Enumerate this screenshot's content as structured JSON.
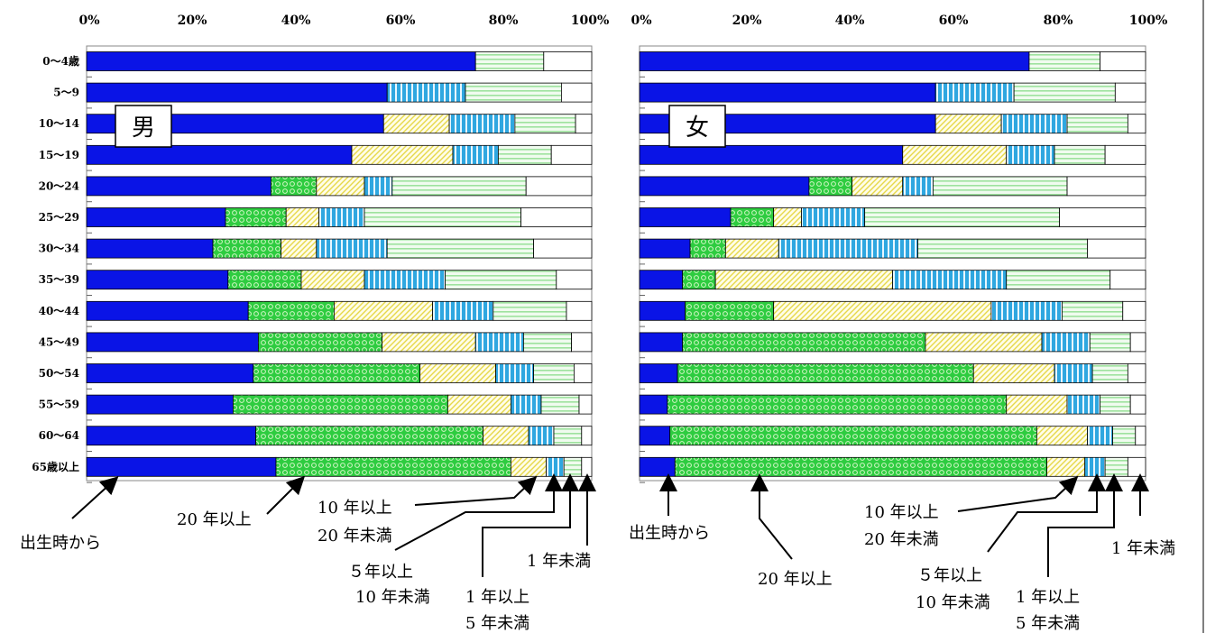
{
  "chart_data": {
    "type": "bar",
    "stacked": true,
    "orientation": "horizontal",
    "xlim": [
      0,
      100
    ],
    "x_ticks": [
      "0%",
      "20%",
      "40%",
      "60%",
      "80%",
      "100%"
    ],
    "categories": [
      "0～4歳",
      "5～9",
      "10～14",
      "15～19",
      "20～24",
      "25～29",
      "30～34",
      "35～39",
      "40～44",
      "45～49",
      "50～54",
      "55～59",
      "60～64",
      "65歳以上"
    ],
    "legend_callouts": {
      "birth": "出生時から",
      "y20plus": "20 年以上",
      "y10_20_line1": "10 年以上",
      "y10_20_line2": "20 年未満",
      "y5_10_line1": "５年以上",
      "y5_10_line2": "10 年未満",
      "y1_5_line1": "1 年以上",
      "y1_5_line2": "5 年未満",
      "under1": "1 年未満"
    },
    "colors": {
      "birth": "#0A14E6",
      "y20plus": "#2ECC40",
      "y10_20": "#E8E060",
      "y5_10": "#2FA7E0",
      "y1_5": "#9EE29E",
      "under1": "#FFFFFF"
    },
    "panels": [
      {
        "label": "男",
        "series": [
          {
            "name": "出生時から",
            "values": [
              77,
              59.5,
              58.8,
              52.5,
              36.5,
              27.5,
              25,
              28,
              32,
              34,
              33,
              29,
              33.5,
              37.5
            ]
          },
          {
            "name": "20 年以上",
            "values": [
              0,
              0,
              0,
              0,
              9,
              12,
              13.5,
              14.5,
              17,
              24.5,
              33,
              42.5,
              45,
              46.5
            ]
          },
          {
            "name": "10 年以上20 年未満",
            "values": [
              0,
              0,
              13,
              20,
              9.5,
              6.5,
              7,
              12.5,
              19.5,
              18.5,
              15,
              12.5,
              9,
              7
            ]
          },
          {
            "name": "５年以上10 年未満",
            "values": [
              0,
              15.5,
              13,
              9,
              5.5,
              9,
              14,
              16,
              12,
              9.5,
              7.5,
              6,
              5,
              3.5
            ]
          },
          {
            "name": "1 年以上5 年未満",
            "values": [
              13.5,
              19,
              12,
              10.5,
              26.5,
              31,
              29,
              22,
              14.5,
              9.5,
              8,
              7.5,
              5.5,
              3.5
            ]
          },
          {
            "name": "1 年未満",
            "values": [
              9.5,
              6,
              3.2,
              8,
              13,
              14,
              11.5,
              7,
              5,
              4,
              3.5,
              2.5,
              2,
              2
            ]
          }
        ]
      },
      {
        "label": "女",
        "series": [
          {
            "name": "出生時から",
            "values": [
              77,
              58.5,
              58.5,
              52,
              33.5,
              18,
              10,
              8.5,
              9,
              8.5,
              7.5,
              5.5,
              6,
              7
            ]
          },
          {
            "name": "20 年以上",
            "values": [
              0,
              0,
              0,
              0,
              8.5,
              8.5,
              7,
              6.5,
              17.5,
              48,
              58.5,
              67,
              72.5,
              73.5
            ]
          },
          {
            "name": "10 年以上20 年未満",
            "values": [
              0,
              0,
              13,
              20.5,
              10,
              5.5,
              10.5,
              35,
              43,
              23,
              16,
              12,
              10,
              7.5
            ]
          },
          {
            "name": "５年以上10 年未満",
            "values": [
              0,
              15.5,
              13,
              9.5,
              6,
              12.5,
              27.5,
              22.5,
              14,
              9.5,
              7.5,
              6.5,
              5,
              4
            ]
          },
          {
            "name": "1 年以上5 年未満",
            "values": [
              14,
              20,
              12,
              10,
              26.5,
              38.5,
              33.5,
              20.5,
              12,
              8,
              7,
              6,
              4.5,
              4.5
            ]
          },
          {
            "name": "1 年未満",
            "values": [
              9,
              6,
              3.5,
              8,
              15.5,
              17,
              11.5,
              7,
              4.5,
              3,
              3.5,
              3,
              2,
              3.5
            ]
          }
        ]
      }
    ]
  }
}
